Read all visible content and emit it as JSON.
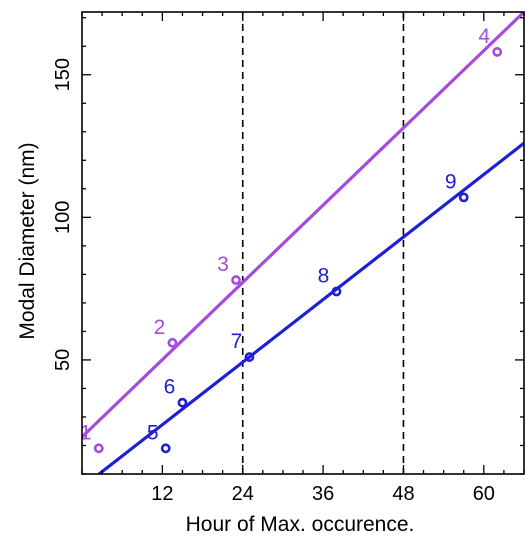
{
  "chart_data": {
    "type": "scatter",
    "xlabel": "Hour of Max. occurence.",
    "ylabel": "Modal Diameter (nm)",
    "xlim": [
      0,
      66
    ],
    "ylim": [
      10,
      172
    ],
    "xticks": [
      12,
      24,
      36,
      48,
      60
    ],
    "yticks": [
      50,
      100,
      150
    ],
    "grid": false,
    "vertical_lines": [
      24,
      48
    ],
    "vertical_line_style": "dashed",
    "colors": {
      "purple": "#a64bdc",
      "blue": "#1f1fd6",
      "axis": "#000000"
    },
    "series": [
      {
        "color": "#a64bdc",
        "points": [
          {
            "label": "1",
            "x": 2.5,
            "y": 19
          },
          {
            "label": "2",
            "x": 13.5,
            "y": 56
          },
          {
            "label": "3",
            "x": 23,
            "y": 78
          },
          {
            "label": "4",
            "x": 62,
            "y": 158
          }
        ],
        "fit_line": {
          "x": [
            0,
            66
          ],
          "y": [
            23,
            172
          ]
        }
      },
      {
        "color": "#1f1fd6",
        "points": [
          {
            "label": "5",
            "x": 12.5,
            "y": 19
          },
          {
            "label": "6",
            "x": 15,
            "y": 35
          },
          {
            "label": "7",
            "x": 25,
            "y": 51
          },
          {
            "label": "8",
            "x": 38,
            "y": 74
          },
          {
            "label": "9",
            "x": 57,
            "y": 107
          }
        ],
        "fit_line": {
          "x": [
            2,
            66
          ],
          "y": [
            9,
            126
          ]
        }
      }
    ]
  }
}
